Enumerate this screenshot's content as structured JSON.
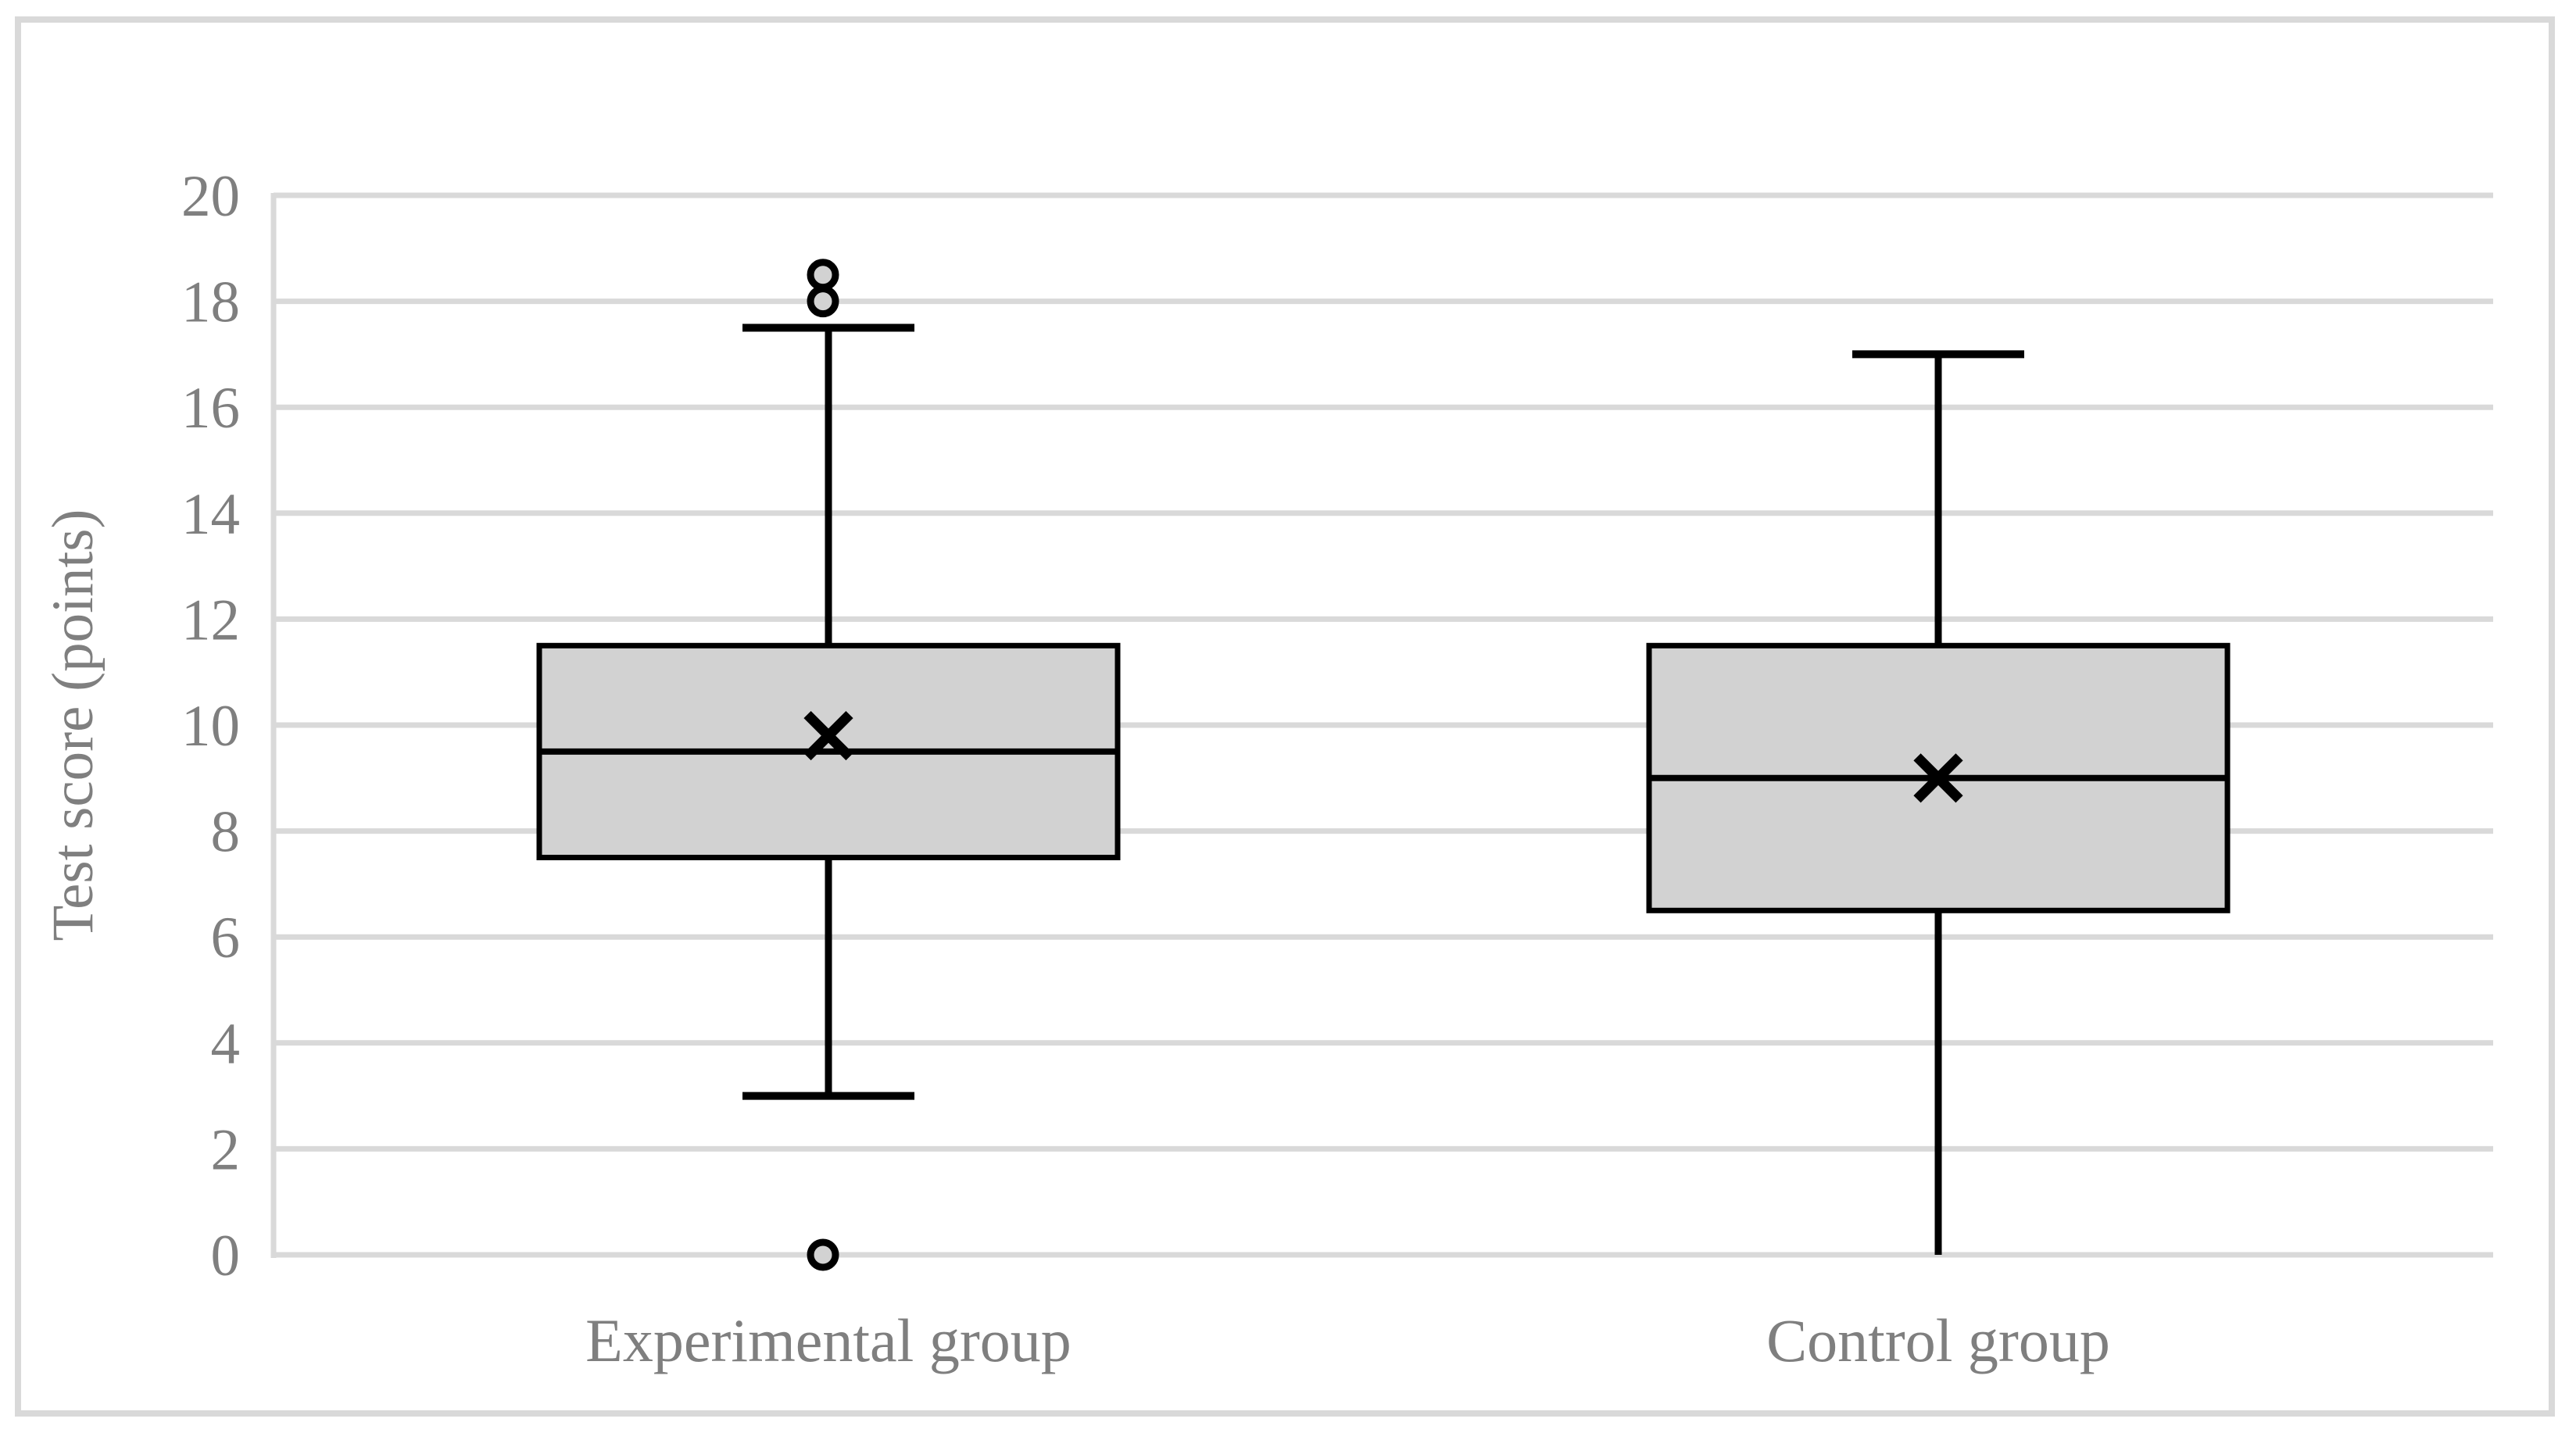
{
  "figure": {
    "background": "#ffffff",
    "frame_border_color": "#d9d9d9"
  },
  "chart_data": {
    "type": "box",
    "title": "",
    "xlabel": "",
    "ylabel": "Test score (points)",
    "ylim": [
      0,
      20
    ],
    "yticks": [
      "0",
      "2",
      "4",
      "6",
      "8",
      "10",
      "12",
      "14",
      "16",
      "18",
      "20"
    ],
    "grid": "horizontal",
    "legend": "none",
    "categories": [
      "Experimental group",
      "Control group"
    ],
    "series": [
      {
        "name": "Experimental group",
        "whisker_low": 3,
        "q1": 7.5,
        "median": 9.5,
        "q3": 11.5,
        "whisker_high": 17.5,
        "mean": 9.8,
        "outliers": [
          18,
          18.5,
          0
        ],
        "whisker_low_cap": true,
        "whisker_high_cap": true
      },
      {
        "name": "Control group",
        "whisker_low": 0,
        "q1": 6.5,
        "median": 9,
        "q3": 11.5,
        "whisker_high": 17,
        "mean": 9,
        "outliers": [],
        "whisker_low_cap": false,
        "whisker_high_cap": true
      }
    ],
    "colors": {
      "box_fill": "#d2d2d2",
      "box_border": "#000000",
      "whisker": "#000000",
      "median": "#000000",
      "mean_marker": "#000000",
      "outlier_stroke": "#000000",
      "outlier_fill": "#d2d2d2",
      "gridline": "#d9d9d9",
      "axis_line": "#d9d9d9",
      "text": "#7f7f7f"
    },
    "mean_marker_symbol": "×"
  }
}
